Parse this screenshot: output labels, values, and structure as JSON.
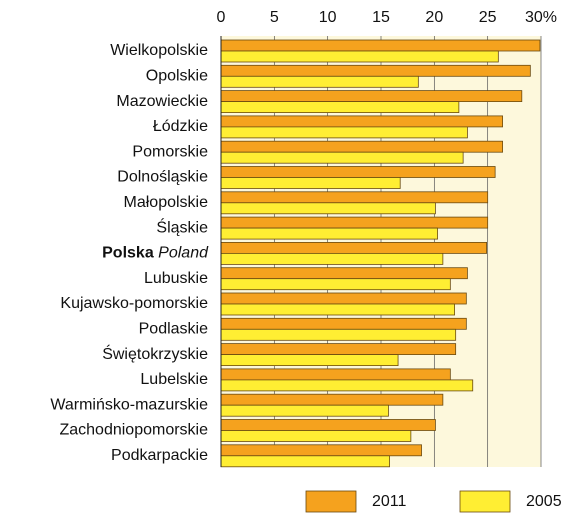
{
  "chart_data": {
    "type": "bar",
    "orientation": "horizontal",
    "categories": [
      "Wielkopolskie",
      "Opolskie",
      "Mazowieckie",
      "Łódzkie",
      "Pomorskie",
      "Dolnośląskie",
      "Małopolskie",
      "Śląskie",
      [
        "Polska",
        "Poland"
      ],
      "Lubuskie",
      "Kujawsko-pomorskie",
      "Podlaskie",
      "Świętokrzyskie",
      "Lubelskie",
      "Warmińsko-mazurskie",
      "Zachodniopomorskie",
      "Podkarpackie"
    ],
    "series": [
      {
        "name": "2011",
        "color": "#f5a21e",
        "values": [
          29.9,
          29.0,
          28.2,
          26.4,
          26.4,
          25.7,
          25.0,
          25.0,
          24.9,
          23.1,
          23.0,
          23.0,
          22.0,
          21.5,
          20.8,
          20.1,
          18.8
        ]
      },
      {
        "name": "2005",
        "color": "#ffee33",
        "values": [
          26.0,
          18.5,
          22.3,
          23.1,
          22.7,
          16.8,
          20.1,
          20.3,
          20.8,
          21.5,
          21.9,
          22.0,
          16.6,
          23.6,
          15.7,
          17.8,
          15.8
        ]
      }
    ],
    "xlim": [
      0,
      30
    ],
    "xticks": [
      0,
      5,
      10,
      15,
      20,
      25,
      {
        "value": 30,
        "label": "30%"
      }
    ],
    "grid": true
  }
}
